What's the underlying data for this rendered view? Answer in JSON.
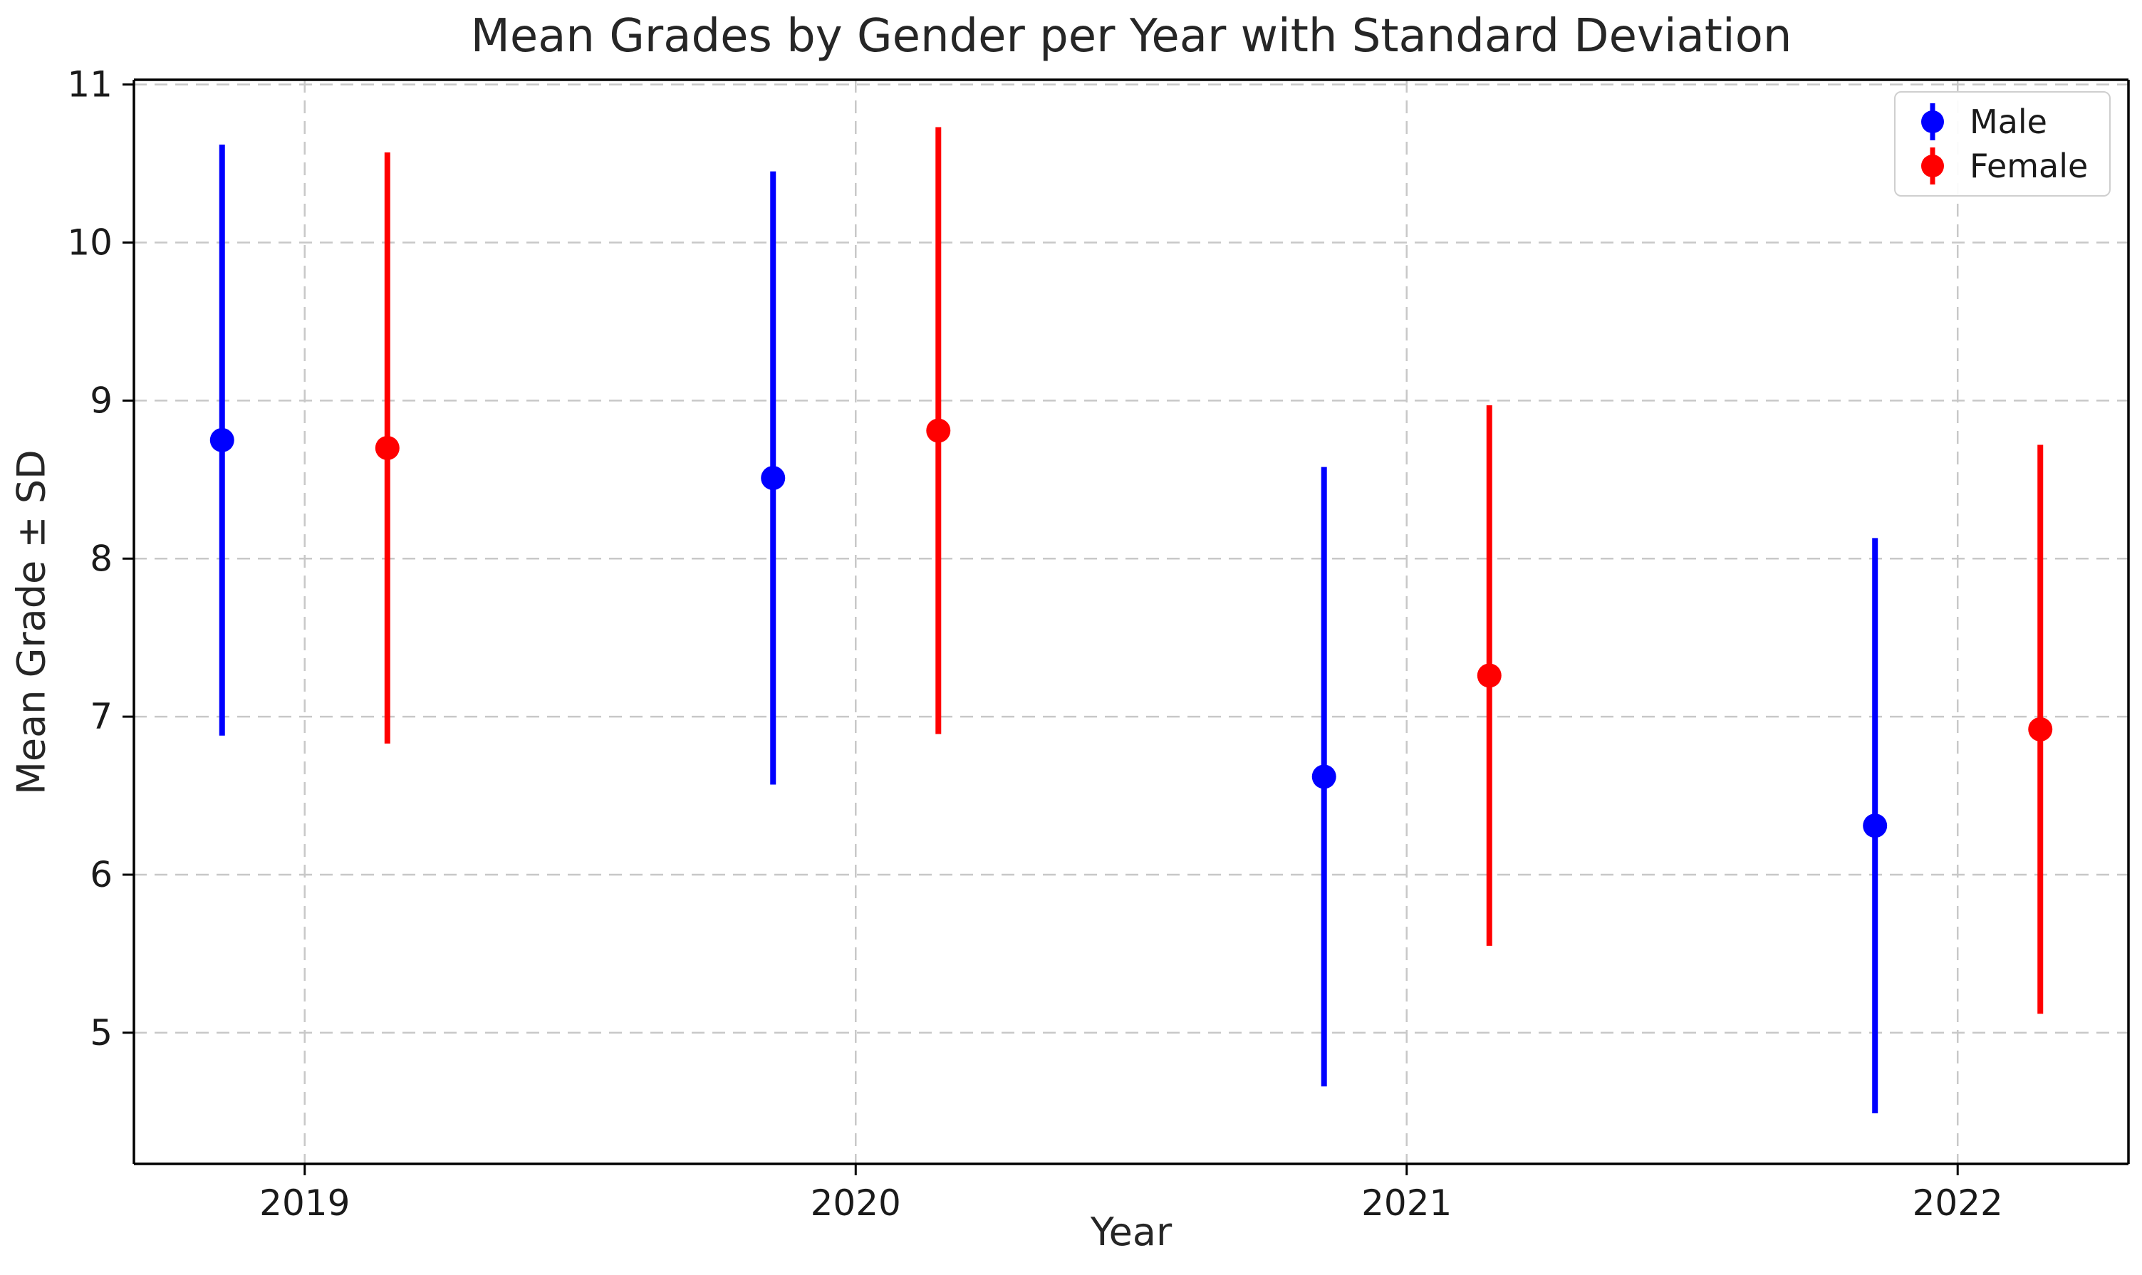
{
  "figure": {
    "title": "Mean Grades by Gender per Year with Standard Deviation",
    "xlabel": "Year",
    "ylabel": "Mean Grade ± SD",
    "background_color": "#ffffff"
  },
  "legend": {
    "position": "upper right",
    "items": [
      {
        "label": "Male",
        "color": "#0000ff"
      },
      {
        "label": "Female",
        "color": "#ff0000"
      }
    ]
  },
  "chart_data": {
    "type": "scatter",
    "subtype": "errorbar-points",
    "title": "Mean Grades by Gender per Year with Standard Deviation",
    "xlabel": "Year",
    "ylabel": "Mean Grade ± SD",
    "error_bar_meaning": "± 1 standard deviation",
    "categories": [
      2019,
      2020,
      2021,
      2022
    ],
    "series": [
      {
        "name": "Male",
        "color": "#0000ff",
        "x_offset": -0.15,
        "means": [
          8.75,
          8.51,
          6.62,
          6.31
        ],
        "sds": [
          1.87,
          1.94,
          1.96,
          1.82
        ]
      },
      {
        "name": "Female",
        "color": "#ff0000",
        "x_offset": 0.15,
        "means": [
          8.7,
          8.81,
          7.26,
          6.92
        ],
        "sds": [
          1.87,
          1.92,
          1.71,
          1.8
        ]
      }
    ],
    "xticks": [
      2019,
      2020,
      2021,
      2022
    ],
    "yticks": [
      5,
      6,
      7,
      8,
      9,
      10,
      11
    ],
    "xlim": [
      2018.69,
      2022.31
    ],
    "ylim": [
      4.17,
      11.03
    ],
    "grid": true,
    "grid_color": "#c8c8c8",
    "grid_style": "dashed",
    "legend_position": "upper right"
  },
  "style": {
    "spine_color": "#000000",
    "tick_label_color": "#1a1a1a",
    "marker_radius": 17,
    "errorbar_width": 8
  }
}
